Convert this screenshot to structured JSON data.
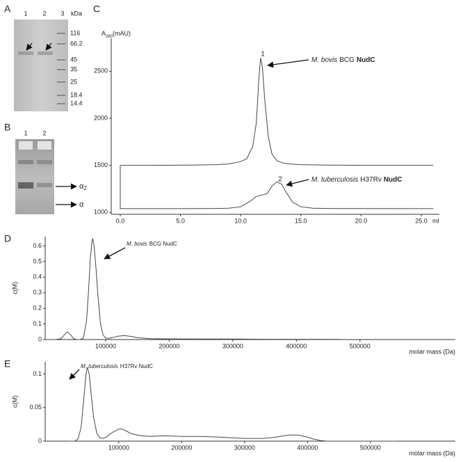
{
  "panels": {
    "a": "A",
    "b": "B",
    "c": "C",
    "d": "D",
    "e": "E"
  },
  "gel_a": {
    "lanes": [
      "1",
      "2",
      "3"
    ],
    "unit": "kDa",
    "markers": [
      "116",
      "66.2",
      "45",
      "35",
      "25",
      "18.4",
      "14.4"
    ]
  },
  "gel_b": {
    "lanes": [
      "1",
      "2"
    ],
    "band_upper": {
      "symbol": "α",
      "sub": "2"
    },
    "band_lower": "α"
  },
  "chart_data": [
    {
      "type": "line",
      "y_label": {
        "main": "A",
        "sub": "280",
        "unit": "(mAU)"
      },
      "x_label": "ml",
      "xlim": [
        -0.75,
        26.5
      ],
      "xticks": [
        {
          "value": 0,
          "label": "0.0"
        },
        {
          "value": 5,
          "label": "5.0"
        },
        {
          "value": 10,
          "label": "10.0"
        },
        {
          "value": 15,
          "label": "15.0"
        },
        {
          "value": 20,
          "label": "20.0"
        },
        {
          "value": 25,
          "label": "25.0"
        }
      ],
      "ylim": [
        980,
        2850
      ],
      "yticks": [
        1000,
        1500,
        2000,
        2500
      ],
      "series": [
        {
          "color": "#444444",
          "x": [
            0,
            2,
            4,
            6,
            8,
            9,
            10,
            10.5,
            11,
            11.3,
            11.5,
            11.65,
            11.8,
            12,
            12.3,
            12.6,
            13,
            13.5,
            14,
            15,
            17,
            20,
            26
          ],
          "values": [
            1500,
            1500,
            1501,
            1503,
            1508,
            1515,
            1540,
            1570,
            1700,
            1950,
            2400,
            2640,
            2550,
            2200,
            1800,
            1620,
            1550,
            1525,
            1515,
            1508,
            1503,
            1500,
            1500
          ]
        },
        {
          "color": "#444444",
          "x": [
            0,
            0,
            2,
            5,
            8,
            9,
            10,
            10.8,
            11.3,
            11.8,
            12.2,
            12.6,
            13,
            13.4,
            13.8,
            14.3,
            15,
            16,
            18,
            26
          ],
          "values": [
            1500,
            1040,
            1040,
            1040,
            1042,
            1045,
            1060,
            1120,
            1170,
            1185,
            1200,
            1280,
            1325,
            1300,
            1210,
            1110,
            1060,
            1045,
            1041,
            1040
          ]
        }
      ],
      "annotations": [
        {
          "number": "1",
          "text": {
            "italic": "M. bovis",
            "normal": "BCG",
            "bold": "NudC"
          }
        },
        {
          "number": "2",
          "text": {
            "italic": "M. tuberculosis",
            "normal": "H37Rv",
            "bold": "NudC"
          }
        }
      ]
    },
    {
      "type": "line",
      "y_label": "c(M)",
      "x_label": "molar mass (Da)",
      "xlim": [
        5000,
        650000
      ],
      "xticks": [
        100000,
        200000,
        300000,
        400000,
        500000
      ],
      "ylim": [
        0,
        0.66
      ],
      "yticks": [
        0,
        0.1,
        0.2,
        0.3,
        0.4,
        0.5,
        0.6
      ],
      "series": [
        {
          "color": "#444444",
          "x": [
            5000,
            20000,
            30000,
            35000,
            40000,
            45000,
            50000,
            55000,
            60000,
            65000,
            70000,
            73000,
            76000,
            79000,
            80000,
            82000,
            85000,
            88000,
            92000,
            96000,
            100000,
            105000,
            110000,
            120000,
            130000,
            140000,
            150000,
            170000,
            200000,
            250000,
            300000,
            350000,
            400000,
            470000
          ],
          "values": [
            0,
            0,
            0.005,
            0.03,
            0.05,
            0.03,
            0.005,
            0,
            0,
            0.01,
            0.12,
            0.3,
            0.52,
            0.64,
            0.645,
            0.6,
            0.45,
            0.28,
            0.1,
            0.03,
            0.01,
            0.008,
            0.012,
            0.022,
            0.025,
            0.02,
            0.012,
            0.006,
            0.004,
            0.003,
            0.003,
            0.002,
            0.002,
            0.001
          ]
        }
      ],
      "annotations": [
        {
          "text": {
            "italic": "M. bovis",
            "normal": "BCG NudC"
          }
        }
      ]
    },
    {
      "type": "line",
      "y_label": "c(M)",
      "x_label": "molar mass (Da)",
      "xlim": [
        -17000,
        635000
      ],
      "xticks": [
        100000,
        200000,
        300000,
        400000,
        500000
      ],
      "ylim": [
        0,
        0.118
      ],
      "yticks": [
        0,
        0.05,
        0.1
      ],
      "series": [
        {
          "color": "#444444",
          "x": [
            20000,
            30000,
            35000,
            40000,
            45000,
            48000,
            50000,
            53000,
            56000,
            60000,
            65000,
            70000,
            75000,
            80000,
            90000,
            100000,
            105000,
            110000,
            120000,
            135000,
            150000,
            170000,
            200000,
            230000,
            260000,
            300000,
            330000,
            350000,
            370000,
            385000,
            400000,
            410000,
            420000,
            430000,
            450000,
            540000
          ],
          "values": [
            0,
            0,
            0.003,
            0.02,
            0.07,
            0.1,
            0.11,
            0.1,
            0.07,
            0.035,
            0.012,
            0.005,
            0.004,
            0.006,
            0.013,
            0.018,
            0.018,
            0.016,
            0.011,
            0.008,
            0.007,
            0.008,
            0.007,
            0.007,
            0.006,
            0.004,
            0.004,
            0.006,
            0.009,
            0.009,
            0.006,
            0.003,
            0.001,
            0,
            0,
            0
          ]
        }
      ],
      "annotations": [
        {
          "text": {
            "italic": "M. tuberculosis",
            "normal": "H37Rv NudC"
          }
        }
      ]
    }
  ]
}
